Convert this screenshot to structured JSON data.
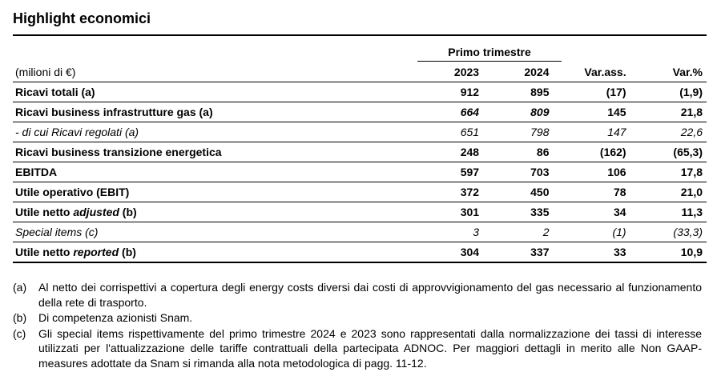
{
  "title": "Highlight economici",
  "group_header": "Primo trimestre",
  "columns": {
    "label": "(milioni di €)",
    "y2023": "2023",
    "y2024": "2024",
    "var_abs": "Var.ass.",
    "var_pct": "Var.%"
  },
  "rows": [
    {
      "pre": "Ricavi totali (a)",
      "em": "",
      "post": "",
      "v2023": "912",
      "v2024": "895",
      "var_abs": "(17)",
      "var_pct": "(1,9)"
    },
    {
      "pre": "Ricavi business infrastrutture gas (a)",
      "em": "",
      "post": "",
      "v2023": "664",
      "v2024": "809",
      "var_abs": "145",
      "var_pct": "21,8"
    },
    {
      "pre": "- di cui Ricavi regolati (a)",
      "em": "",
      "post": "",
      "v2023": "651",
      "v2024": "798",
      "var_abs": "147",
      "var_pct": "22,6"
    },
    {
      "pre": "Ricavi business transizione energetica",
      "em": "",
      "post": "",
      "v2023": "248",
      "v2024": "86",
      "var_abs": "(162)",
      "var_pct": "(65,3)"
    },
    {
      "pre": "EBITDA",
      "em": "",
      "post": "",
      "v2023": "597",
      "v2024": "703",
      "var_abs": "106",
      "var_pct": "17,8"
    },
    {
      "pre": "Utile operativo (EBIT)",
      "em": "",
      "post": "",
      "v2023": "372",
      "v2024": "450",
      "var_abs": "78",
      "var_pct": "21,0"
    },
    {
      "pre": "Utile netto ",
      "em": "adjusted",
      "post": " (b)",
      "v2023": "301",
      "v2024": "335",
      "var_abs": "34",
      "var_pct": "11,3"
    },
    {
      "pre": "Special items (c)",
      "em": "",
      "post": "",
      "v2023": "3",
      "v2024": "2",
      "var_abs": "(1)",
      "var_pct": "(33,3)"
    },
    {
      "pre": "Utile netto ",
      "em": "reported",
      "post": " (b)",
      "v2023": "304",
      "v2024": "337",
      "var_abs": "33",
      "var_pct": "10,9"
    }
  ],
  "notes": [
    {
      "mark": "(a)",
      "text": "Al netto dei corrispettivi a copertura degli energy costs diversi dai costi di approvvigionamento del gas necessario al funzionamento della rete di trasporto."
    },
    {
      "mark": "(b)",
      "text": "Di competenza azionisti Snam."
    },
    {
      "mark": "(c)",
      "text": "Gli special items rispettivamente del primo trimestre 2024 e 2023 sono rappresentati dalla normalizzazione dei tassi di interesse utilizzati per l'attualizzazione delle tariffe contrattuali della partecipata ADNOC. Per maggiori dettagli in merito alle Non GAAP- measures adottate da Snam si rimanda alla nota metodologica di pagg. 11-12."
    }
  ]
}
